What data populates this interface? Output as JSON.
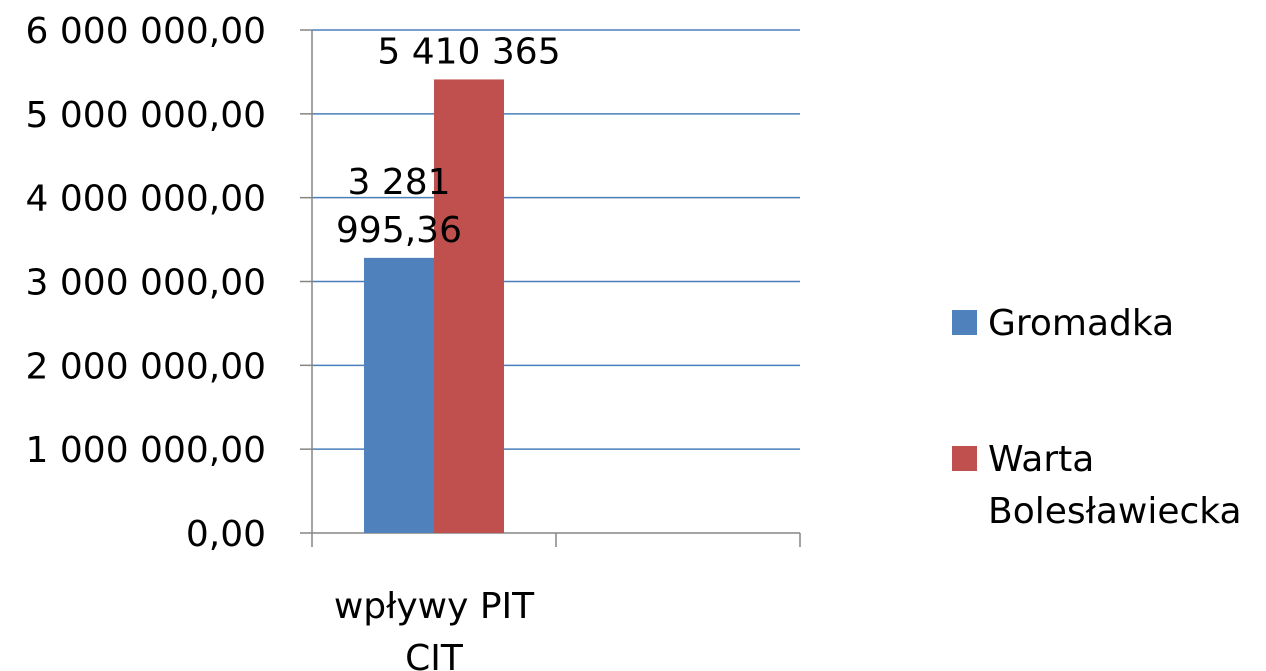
{
  "chart_data": {
    "type": "bar",
    "categories": [
      "wpływy PIT CIT",
      ""
    ],
    "category_label_lines": [
      [
        "wpływy PIT",
        "CIT"
      ],
      []
    ],
    "series": [
      {
        "name": "Gromadka",
        "values": [
          3281995.36,
          null
        ],
        "data_label_lines": [
          [
            "3 281",
            "995,36"
          ],
          []
        ],
        "color": "#4F81BD"
      },
      {
        "name": "Warta Bolesławiecka",
        "values": [
          5410365,
          null
        ],
        "data_label_lines": [
          [
            "5 410 365"
          ],
          []
        ],
        "legend_lines": [
          "Warta",
          "Bolesławiecka"
        ],
        "color": "#C0504D"
      }
    ],
    "y_ticks": [
      {
        "value": 0,
        "label": "0,00"
      },
      {
        "value": 1000000,
        "label": "1 000 000,00"
      },
      {
        "value": 2000000,
        "label": "2 000 000,00"
      },
      {
        "value": 3000000,
        "label": "3 000 000,00"
      },
      {
        "value": 4000000,
        "label": "4 000 000,00"
      },
      {
        "value": 5000000,
        "label": "5 000 000,00"
      },
      {
        "value": 6000000,
        "label": "6 000 000,00"
      }
    ],
    "ylim": [
      0,
      6000000
    ],
    "grid": true,
    "gridline_color": "#4A7EBB",
    "legend_position": "right"
  }
}
